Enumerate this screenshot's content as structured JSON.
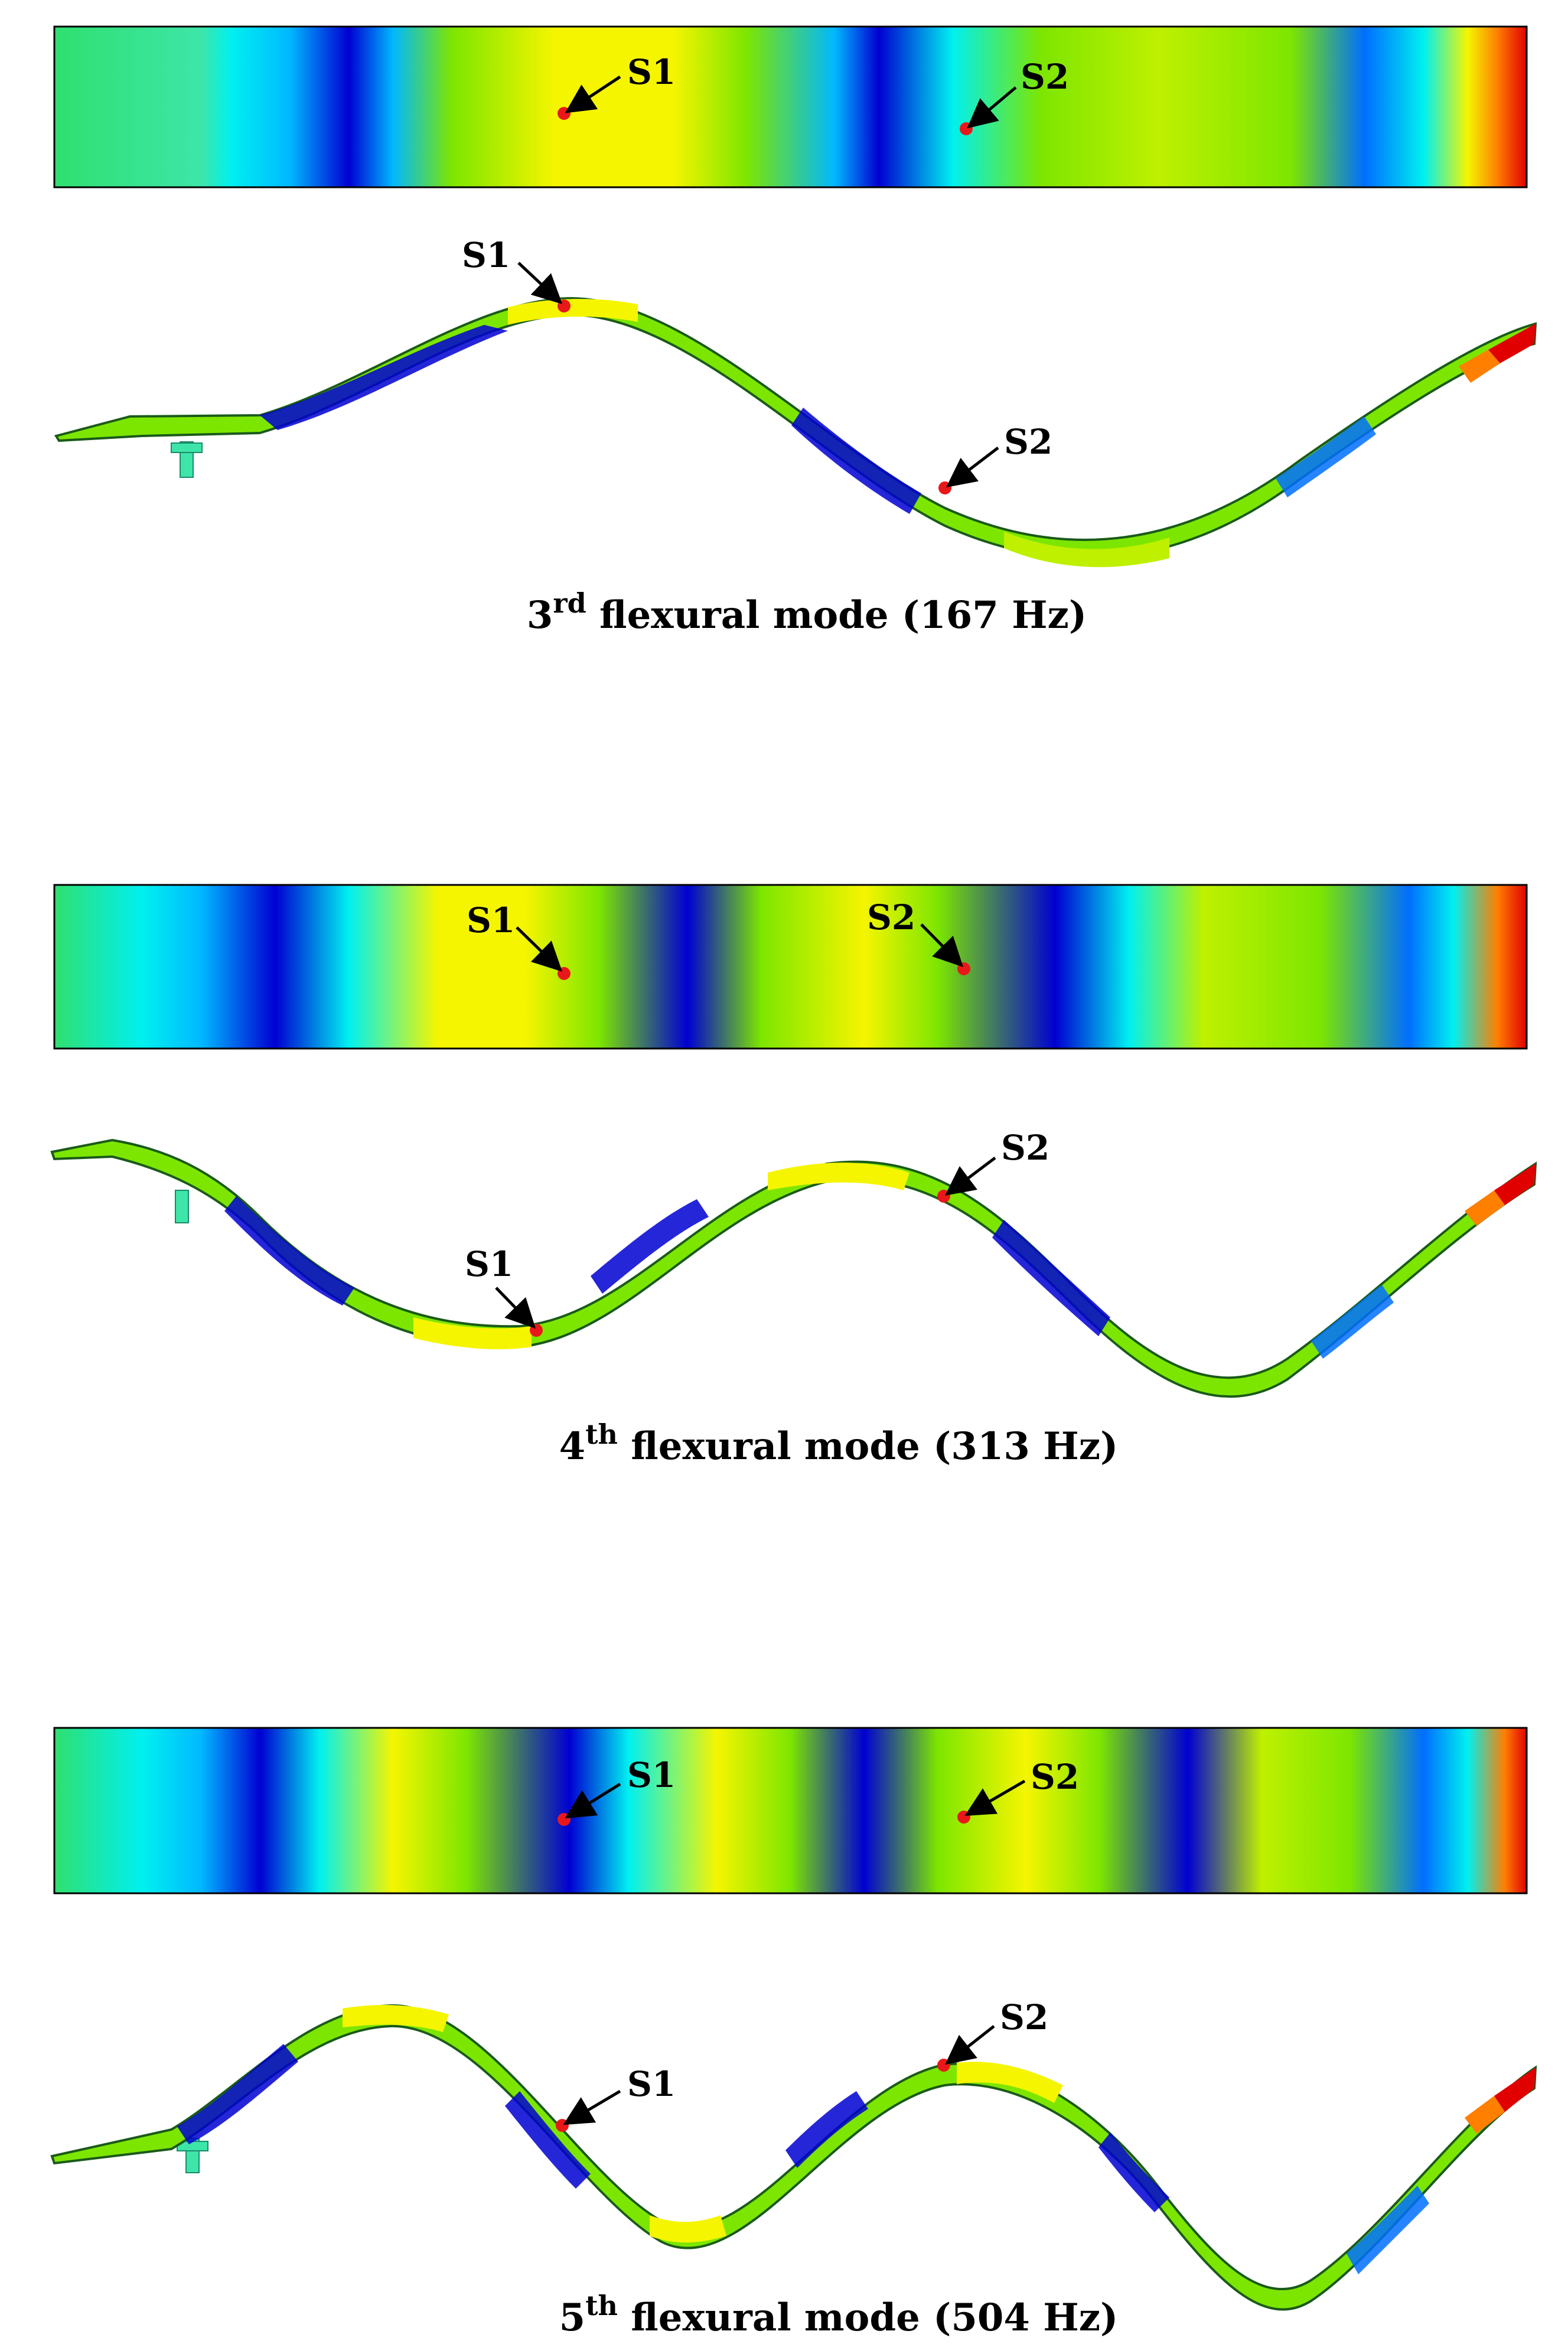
{
  "figure": {
    "colors": {
      "red": "#e10000",
      "orange": "#ff7f00",
      "yellow": "#f5f500",
      "yellow_green": "#bff000",
      "green": "#7de600",
      "light_green": "#2fe06f",
      "cyan": "#00f0f0",
      "light_blue": "#00b8ff",
      "blue": "#006eff",
      "dark_blue": "#0000d2",
      "teal_green": "#3de6a8",
      "marker": "#e8181a"
    },
    "modes": [
      {
        "sup_number": "3",
        "sup_text": "rd",
        "caption_text": " flexural mode (167 Hz)",
        "point1_label": "S1",
        "point2_label": "S2"
      },
      {
        "sup_number": "4",
        "sup_text": "th",
        "caption_text": " flexural mode (313 Hz)",
        "point1_label": "S1",
        "point2_label": "S2"
      },
      {
        "sup_number": "5",
        "sup_text": "th",
        "caption_text": " flexural mode (504 Hz)",
        "point1_label": "S1",
        "point2_label": "S2"
      }
    ]
  }
}
